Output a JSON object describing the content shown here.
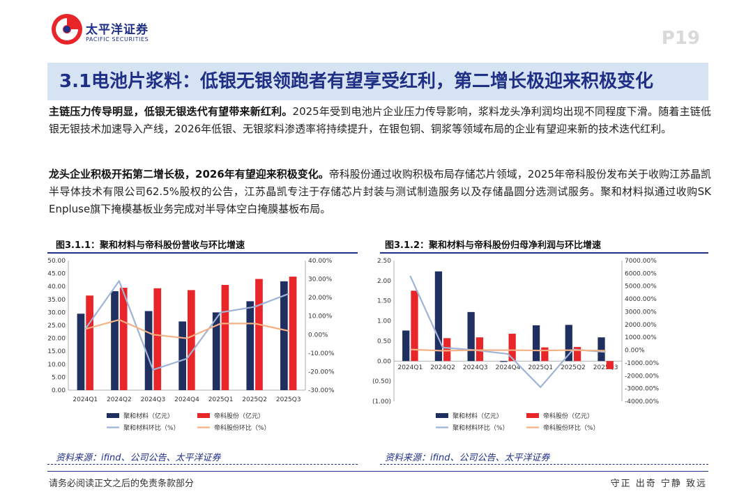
{
  "header": {
    "logo_cn": "太平洋证券",
    "logo_en": "PACIFIC SECURITIES",
    "page_no": "P19"
  },
  "title": "3.1电池片浆料：低银无银领跑者有望享受红利，第二增长极迎来积极变化",
  "para1": {
    "lead": "主链压力传导明显，低银无银迭代有望带来新红利。",
    "body": "2025年受到电池片企业压力传导影响，浆料龙头净利润均出现不同程度下滑。随着主链低银无银技术加速导入产线，2026年低银、无银浆料渗透率将持续提升，在银包铜、铜浆等领域布局的企业有望迎来新的技术迭代红利。"
  },
  "para2": {
    "lead": "龙头企业积极开拓第二增长极，2026年有望迎来积极变化。",
    "body": "帝科股份通过收购积极布局存储芯片领域，2025年帝科股份发布关于收购江苏晶凯半导体技术有限公司62.5%股权的公告，江苏晶凯专注于存储芯片封装与测试制造服务以及存储晶圆分选测试服务。聚和材料拟通过收购SK Enpluse旗下掩模基板业务完成对半导体空白掩膜基板布局。"
  },
  "figures": {
    "fig1_title": "图3.1.1：聚和材料与帝科股份营收与环比增速",
    "fig2_title": "图3.1.2：聚和材料与帝科股份归母净利润与环比增速",
    "source1": "资料来源：ifind、公司公告、太平洋证券",
    "source2": "资料来源：ifind、公司公告、太平洋证券"
  },
  "footer": {
    "left": "请务必阅读正文之后的免责条款部分",
    "right": "守正 出奇 宁静 致远"
  },
  "colors": {
    "navy": "#1f2f5f",
    "red": "#e8262a",
    "lightblue": "#9fb3d6",
    "orange": "#f4b183",
    "brand": "#1f2f86"
  },
  "chart_data": [
    {
      "type": "bar",
      "title": "图3.1.1：聚和材料与帝科股份营收与环比增速",
      "categories": [
        "2024Q1",
        "2024Q2",
        "2024Q3",
        "2024Q4",
        "2025Q1",
        "2025Q2",
        "2025Q3"
      ],
      "y_left": {
        "ylim": [
          0,
          50
        ],
        "ticks": [
          "0.00",
          "5.00",
          "10.00",
          "15.00",
          "20.00",
          "25.00",
          "30.00",
          "35.00",
          "40.00",
          "45.00",
          "50.00"
        ]
      },
      "y_right": {
        "ylim": [
          -30,
          40
        ],
        "ticks": [
          "-30.00%",
          "-20.00%",
          "-10.00%",
          "0.00%",
          "10.00%",
          "20.00%",
          "30.00%",
          "40.00%"
        ]
      },
      "series": [
        {
          "name": "聚和材料（亿元）",
          "kind": "bar",
          "axis": "left",
          "values": [
            29.5,
            38.2,
            30.5,
            26.5,
            30.0,
            34.3,
            42.0
          ]
        },
        {
          "name": "帝科股份（亿元）",
          "kind": "bar",
          "axis": "left",
          "values": [
            36.5,
            39.5,
            39.3,
            38.6,
            40.6,
            42.9,
            43.8
          ]
        },
        {
          "name": "聚和材料环比（%）",
          "kind": "line",
          "axis": "right",
          "values": [
            3.0,
            29.0,
            -19.0,
            -13.0,
            12.0,
            15.0,
            22.0
          ]
        },
        {
          "name": "帝科股份环比（%）",
          "kind": "line",
          "axis": "right",
          "values": [
            3.0,
            8.0,
            0.0,
            -2.0,
            6.0,
            6.0,
            2.0
          ]
        }
      ],
      "legend": "bottom"
    },
    {
      "type": "bar",
      "title": "图3.1.2：聚和材料与帝科股份归母净利润与环比增速",
      "categories": [
        "2024Q1",
        "2024Q2",
        "2024Q3",
        "2024Q4",
        "2025Q1",
        "2025Q2",
        "2025Q3"
      ],
      "y_left": {
        "ylim": [
          -1,
          2.5
        ],
        "ticks": [
          "(1.00)",
          "(0.50)",
          "0.00",
          "0.50",
          "1.00",
          "1.50",
          "2.00",
          "2.50"
        ]
      },
      "y_right": {
        "ylim": [
          -4000,
          7000
        ],
        "ticks": [
          "-4000.00%",
          "-3000.00%",
          "-2000.00%",
          "-1000.00%",
          "0.00%",
          "1000.00%",
          "2000.00%",
          "3000.00%",
          "4000.00%",
          "5000.00%",
          "6000.00%",
          "7000.00%"
        ]
      },
      "series": [
        {
          "name": "聚和材料（亿元）",
          "kind": "bar",
          "axis": "left",
          "values": [
            0.76,
            2.23,
            1.22,
            -0.02,
            0.89,
            0.9,
            0.59
          ]
        },
        {
          "name": "帝科股份（亿元）",
          "kind": "bar",
          "axis": "left",
          "values": [
            1.75,
            0.57,
            0.59,
            0.68,
            0.34,
            0.35,
            -0.2
          ]
        },
        {
          "name": "聚和材料环比（%）",
          "kind": "line",
          "axis": "right",
          "values": [
            5800,
            200,
            0,
            -300,
            -2900,
            50,
            -150
          ]
        },
        {
          "name": "帝科股份环比（%）",
          "kind": "line",
          "axis": "right",
          "values": [
            50,
            -50,
            0,
            0,
            -30,
            0,
            -50
          ]
        }
      ],
      "legend": "bottom"
    }
  ]
}
